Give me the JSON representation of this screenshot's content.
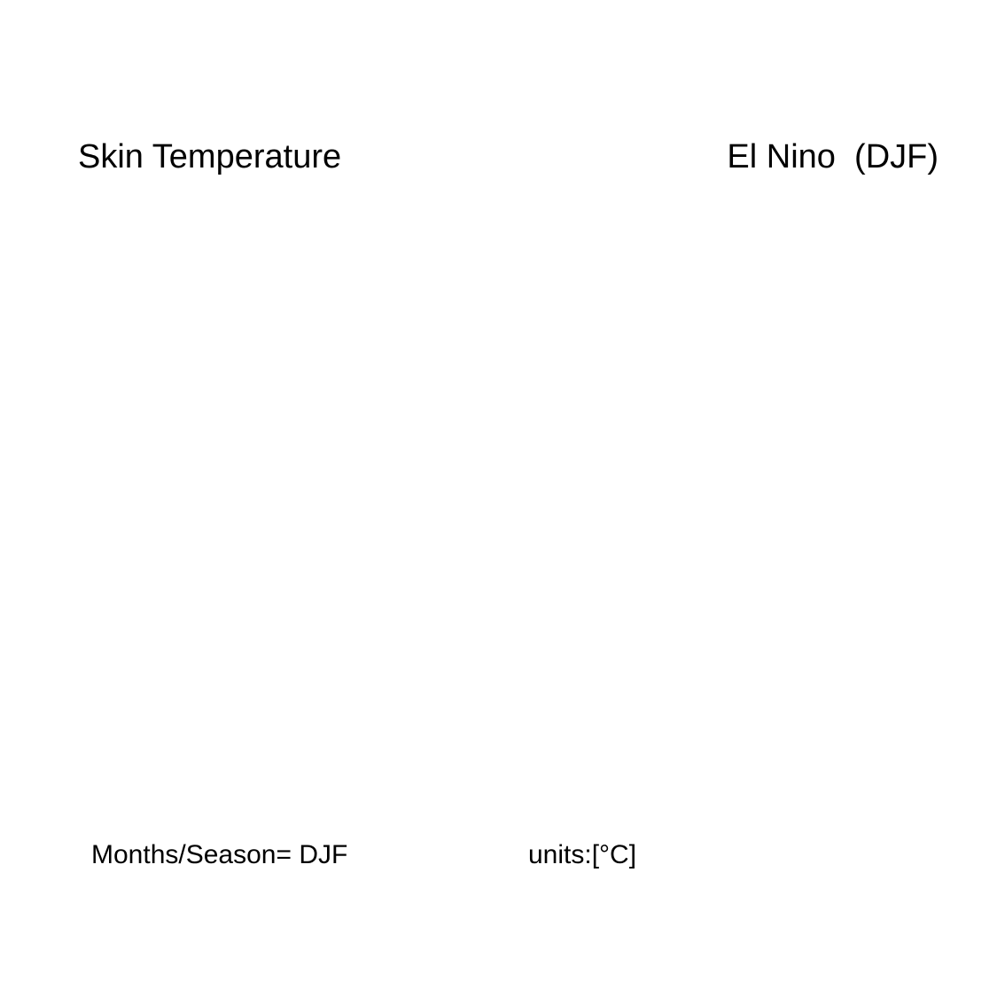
{
  "figure": {
    "variable_title": "Skin Temperature",
    "condition_title": "El Nino  (DJF)",
    "season_label": "Months/Season= DJF",
    "units_label": "units:[°C]"
  }
}
